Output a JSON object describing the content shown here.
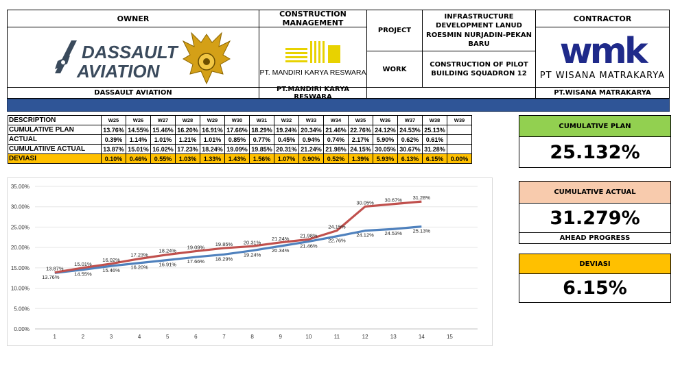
{
  "header": {
    "owner_label": "OWNER",
    "owner_name": "DASSAULT AVIATION",
    "owner_logo_line1": "DASSAULT",
    "owner_logo_line2": "AVIATION",
    "cm_label": "CONSTRUCTION MANAGEMENT",
    "cm_logo_text": "PT. MANDIRI KARYA RESWARA",
    "cm_name": "PT.MANDIRI KARYA RESWARA",
    "project_label": "PROJECT",
    "project_value": "INFRASTRUCTURE DEVELOPMENT LANUD ROESMIN NURJADIN-PEKAN BARU",
    "work_label": "WORK",
    "work_value": "CONSTRUCTION OF PILOT BUILDING SQUADRON 12",
    "contractor_label": "CONTRACTOR",
    "contractor_logo_text": "wmk",
    "contractor_logo_sub": "PT WISANA MATRAKARYA",
    "contractor_name": "PT.WISANA MATRAKARYA"
  },
  "table": {
    "desc_label": "DESCRIPTION",
    "weeks": [
      "W25",
      "W26",
      "W27",
      "W28",
      "W29",
      "W30",
      "W31",
      "W32",
      "W33",
      "W34",
      "W35",
      "W36",
      "W37",
      "W38",
      "W39"
    ],
    "rows": [
      {
        "label": "CUMULATIVE PLAN",
        "values": [
          "13.76%",
          "14.55%",
          "15.46%",
          "16.20%",
          "16.91%",
          "17.66%",
          "18.29%",
          "19.24%",
          "20.34%",
          "21.46%",
          "22.76%",
          "24.12%",
          "24.53%",
          "25.13%",
          ""
        ]
      },
      {
        "label": "ACTUAL",
        "values": [
          "0.39%",
          "1.14%",
          "1.01%",
          "1.21%",
          "1.01%",
          "0.85%",
          "0.77%",
          "0.45%",
          "0.94%",
          "0.74%",
          "2.17%",
          "5.90%",
          "0.62%",
          "0.61%",
          ""
        ]
      },
      {
        "label": "CUMULATIIVE ACTUAL",
        "values": [
          "13.87%",
          "15.01%",
          "16.02%",
          "17.23%",
          "18.24%",
          "19.09%",
          "19.85%",
          "20.31%",
          "21.24%",
          "21.98%",
          "24.15%",
          "30.05%",
          "30.67%",
          "31.28%",
          ""
        ]
      },
      {
        "label": "DEVIASI",
        "values": [
          "0.10%",
          "0.46%",
          "0.55%",
          "1.03%",
          "1.33%",
          "1.43%",
          "1.56%",
          "1.07%",
          "0.90%",
          "0.52%",
          "1.39%",
          "5.93%",
          "6.13%",
          "6.15%",
          "0.00%"
        ]
      }
    ]
  },
  "kpi": {
    "plan_label": "CUMULATIVE PLAN",
    "plan_value": "25.132%",
    "plan_color": "#92d050",
    "actual_label": "CUMULATIVE ACTUAL",
    "actual_value": "31.279%",
    "actual_color": "#f8cbad",
    "status_label": "AHEAD PROGRESS",
    "dev_label": "DEVIASI",
    "dev_value": "6.15%",
    "dev_color": "#ffc000"
  },
  "chart_data": {
    "type": "line",
    "x": [
      1,
      2,
      3,
      4,
      5,
      6,
      7,
      8,
      9,
      10,
      11,
      12,
      13,
      14
    ],
    "xticks": [
      1,
      2,
      3,
      4,
      5,
      6,
      7,
      8,
      9,
      10,
      11,
      12,
      13,
      14,
      15
    ],
    "ylim": [
      0,
      35
    ],
    "yticks": [
      "0.00%",
      "5.00%",
      "10.00%",
      "15.00%",
      "20.00%",
      "25.00%",
      "30.00%",
      "35.00%"
    ],
    "grid": true,
    "series": [
      {
        "color": "#4f81bd",
        "values": [
          13.76,
          14.55,
          15.46,
          16.2,
          16.91,
          17.66,
          18.29,
          19.24,
          20.34,
          21.46,
          22.76,
          24.12,
          24.53,
          25.13
        ],
        "labels": [
          "13.76%",
          "14.55%",
          "15.46%",
          "16.20%",
          "16.91%",
          "17.66%",
          "18.29%",
          "19.24%",
          "20.34%",
          "21.46%",
          "22.76%",
          "24.12%",
          "24.53%",
          "25.13%"
        ]
      },
      {
        "color": "#c0504d",
        "values": [
          13.87,
          15.01,
          16.02,
          17.23,
          18.24,
          19.09,
          19.85,
          20.31,
          21.24,
          21.98,
          24.15,
          30.05,
          30.67,
          31.28
        ],
        "labels": [
          "13.87%",
          "15.01%",
          "16.02%",
          "17.23%",
          "18.24%",
          "19.09%",
          "19.85%",
          "20.31%",
          "21.24%",
          "21.98%",
          "24.15%",
          "30.05%",
          "30.67%",
          "31.28%"
        ]
      }
    ]
  }
}
